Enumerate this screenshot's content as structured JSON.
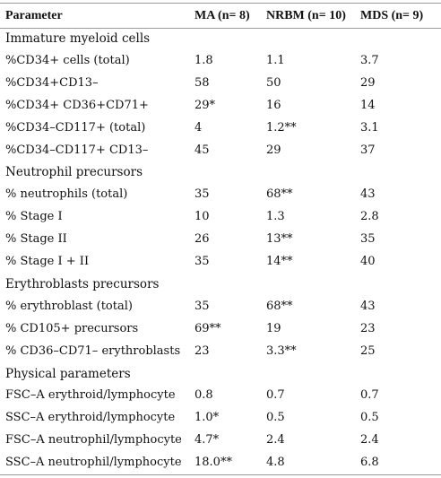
{
  "header": {
    "parameter": "Parameter",
    "ma": "MA (n= 8)",
    "nrbm": "NRBM (n= 10)",
    "mds": "MDS (n= 9)"
  },
  "rows": [
    {
      "type": "section",
      "label": "Immature myeloid cells"
    },
    {
      "type": "data",
      "label": "%CD34+ cells (total)",
      "ma": "1.8",
      "nrbm": "1.1",
      "mds": "3.7"
    },
    {
      "type": "data",
      "label": "%CD34+CD13–",
      "ma": "58",
      "nrbm": "50",
      "mds": "29"
    },
    {
      "type": "data",
      "label": "%CD34+ CD36+CD71+",
      "ma": "29*",
      "nrbm": "16",
      "mds": "14"
    },
    {
      "type": "data",
      "label": "%CD34–CD117+ (total)",
      "ma": "4",
      "nrbm": "1.2**",
      "mds": "3.1"
    },
    {
      "type": "data",
      "label": "%CD34–CD117+ CD13–",
      "ma": "45",
      "nrbm": "29",
      "mds": "37"
    },
    {
      "type": "section",
      "label": "Neutrophil precursors"
    },
    {
      "type": "data",
      "label": "% neutrophils (total)",
      "ma": "35",
      "nrbm": "68**",
      "mds": "43"
    },
    {
      "type": "data",
      "label": "% Stage I",
      "ma": "10",
      "nrbm": "1.3",
      "mds": "2.8"
    },
    {
      "type": "data",
      "label": "% Stage II",
      "ma": "26",
      "nrbm": "13**",
      "mds": "35"
    },
    {
      "type": "data",
      "label": "% Stage I + II",
      "ma": "35",
      "nrbm": "14**",
      "mds": "40"
    },
    {
      "type": "section",
      "label": "Erythroblasts precursors"
    },
    {
      "type": "data",
      "label": "% erythroblast (total)",
      "ma": "35",
      "nrbm": "68**",
      "mds": "43"
    },
    {
      "type": "data",
      "label": "% CD105+ precursors",
      "ma": "69**",
      "nrbm": "19",
      "mds": "23"
    },
    {
      "type": "data",
      "label": "% CD36–CD71– erythroblasts",
      "ma": "23",
      "nrbm": "3.3**",
      "mds": "25"
    },
    {
      "type": "section",
      "label": "Physical parameters"
    },
    {
      "type": "data",
      "label": "FSC–A erythroid/lymphocyte",
      "ma": "0.8",
      "nrbm": "0.7",
      "mds": "0.7"
    },
    {
      "type": "data",
      "label": "SSC–A erythroid/lymphocyte",
      "ma": "1.0*",
      "nrbm": "0.5",
      "mds": "0.5"
    },
    {
      "type": "data",
      "label": "FSC–A neutrophil/lymphocyte",
      "ma": "4.7*",
      "nrbm": "2.4",
      "mds": "2.4"
    },
    {
      "type": "data",
      "label": "SSC–A neutrophil/lymphocyte",
      "ma": "18.0**",
      "nrbm": "4.8",
      "mds": "6.8"
    }
  ]
}
